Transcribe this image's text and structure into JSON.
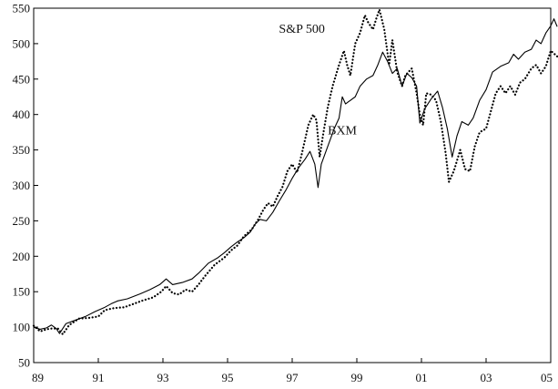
{
  "chart_data": {
    "type": "line",
    "title": "",
    "xlabel": "",
    "ylabel": "",
    "xlim": [
      1989,
      2005
    ],
    "ylim": [
      50,
      550
    ],
    "grid": false,
    "legend": "none",
    "x_ticks": [
      {
        "value": 1989,
        "label": "89"
      },
      {
        "value": 1991,
        "label": "91"
      },
      {
        "value": 1993,
        "label": "93"
      },
      {
        "value": 1995,
        "label": "95"
      },
      {
        "value": 1997,
        "label": "97"
      },
      {
        "value": 1999,
        "label": "99"
      },
      {
        "value": 2001,
        "label": "01"
      },
      {
        "value": 2003,
        "label": "03"
      },
      {
        "value": 2005,
        "label": "05"
      }
    ],
    "y_ticks": [
      50,
      100,
      150,
      200,
      250,
      300,
      350,
      400,
      450,
      500,
      550
    ],
    "series": [
      {
        "name": "BXM",
        "style": "solid",
        "color": "#000000",
        "label_at": {
          "x": 1998.55,
          "y": 372
        },
        "points": [
          [
            1989.0,
            100
          ],
          [
            1989.2,
            97
          ],
          [
            1989.4,
            99
          ],
          [
            1989.55,
            103
          ],
          [
            1989.7,
            98
          ],
          [
            1989.8,
            91
          ],
          [
            1990.0,
            105
          ],
          [
            1990.3,
            110
          ],
          [
            1990.6,
            115
          ],
          [
            1990.9,
            122
          ],
          [
            1991.2,
            128
          ],
          [
            1991.4,
            133
          ],
          [
            1991.6,
            137
          ],
          [
            1991.9,
            140
          ],
          [
            1992.3,
            147
          ],
          [
            1992.6,
            153
          ],
          [
            1992.9,
            160
          ],
          [
            1993.1,
            168
          ],
          [
            1993.3,
            160
          ],
          [
            1993.6,
            163
          ],
          [
            1993.9,
            168
          ],
          [
            1994.1,
            176
          ],
          [
            1994.4,
            190
          ],
          [
            1994.7,
            198
          ],
          [
            1994.9,
            205
          ],
          [
            1995.1,
            213
          ],
          [
            1995.3,
            220
          ],
          [
            1995.5,
            226
          ],
          [
            1995.7,
            234
          ],
          [
            1995.85,
            245
          ],
          [
            1996.0,
            252
          ],
          [
            1996.2,
            250
          ],
          [
            1996.4,
            262
          ],
          [
            1996.6,
            278
          ],
          [
            1996.8,
            293
          ],
          [
            1997.0,
            310
          ],
          [
            1997.2,
            325
          ],
          [
            1997.4,
            337
          ],
          [
            1997.55,
            348
          ],
          [
            1997.7,
            330
          ],
          [
            1997.8,
            297
          ],
          [
            1997.9,
            330
          ],
          [
            1998.1,
            355
          ],
          [
            1998.3,
            380
          ],
          [
            1998.45,
            395
          ],
          [
            1998.55,
            425
          ],
          [
            1998.65,
            415
          ],
          [
            1998.8,
            420
          ],
          [
            1998.95,
            425
          ],
          [
            1999.1,
            440
          ],
          [
            1999.3,
            450
          ],
          [
            1999.5,
            455
          ],
          [
            1999.65,
            470
          ],
          [
            1999.8,
            488
          ],
          [
            1999.95,
            475
          ],
          [
            2000.1,
            458
          ],
          [
            2000.25,
            465
          ],
          [
            2000.4,
            440
          ],
          [
            2000.55,
            458
          ],
          [
            2000.7,
            452
          ],
          [
            2000.85,
            440
          ],
          [
            2000.95,
            388
          ],
          [
            2001.1,
            408
          ],
          [
            2001.3,
            422
          ],
          [
            2001.5,
            433
          ],
          [
            2001.65,
            410
          ],
          [
            2001.8,
            380
          ],
          [
            2001.95,
            340
          ],
          [
            2002.1,
            370
          ],
          [
            2002.25,
            390
          ],
          [
            2002.45,
            385
          ],
          [
            2002.6,
            395
          ],
          [
            2002.8,
            420
          ],
          [
            2003.0,
            435
          ],
          [
            2003.2,
            460
          ],
          [
            2003.45,
            468
          ],
          [
            2003.7,
            473
          ],
          [
            2003.85,
            485
          ],
          [
            2004.0,
            478
          ],
          [
            2004.2,
            488
          ],
          [
            2004.4,
            492
          ],
          [
            2004.55,
            505
          ],
          [
            2004.7,
            500
          ],
          [
            2004.85,
            515
          ],
          [
            2005.0,
            525
          ],
          [
            2005.1,
            535
          ],
          [
            2005.2,
            524
          ]
        ]
      },
      {
        "name": "S&P 500",
        "style": "dotted",
        "color": "#000000",
        "label_at": {
          "x": 1997.3,
          "y": 515
        },
        "points": [
          [
            1989.0,
            102
          ],
          [
            1989.2,
            94
          ],
          [
            1989.4,
            97
          ],
          [
            1989.55,
            98
          ],
          [
            1989.75,
            98
          ],
          [
            1989.9,
            90
          ],
          [
            1990.1,
            103
          ],
          [
            1990.4,
            112
          ],
          [
            1990.7,
            113
          ],
          [
            1991.0,
            115
          ],
          [
            1991.2,
            124
          ],
          [
            1991.5,
            127
          ],
          [
            1991.8,
            128
          ],
          [
            1992.1,
            133
          ],
          [
            1992.4,
            138
          ],
          [
            1992.7,
            142
          ],
          [
            1992.95,
            150
          ],
          [
            1993.1,
            158
          ],
          [
            1993.3,
            148
          ],
          [
            1993.5,
            146
          ],
          [
            1993.7,
            153
          ],
          [
            1993.9,
            150
          ],
          [
            1994.1,
            160
          ],
          [
            1994.3,
            172
          ],
          [
            1994.6,
            188
          ],
          [
            1994.9,
            198
          ],
          [
            1995.1,
            208
          ],
          [
            1995.3,
            215
          ],
          [
            1995.5,
            228
          ],
          [
            1995.75,
            238
          ],
          [
            1995.95,
            252
          ],
          [
            1996.1,
            265
          ],
          [
            1996.25,
            275
          ],
          [
            1996.4,
            270
          ],
          [
            1996.55,
            285
          ],
          [
            1996.7,
            298
          ],
          [
            1996.85,
            320
          ],
          [
            1997.0,
            330
          ],
          [
            1997.15,
            318
          ],
          [
            1997.3,
            345
          ],
          [
            1997.5,
            385
          ],
          [
            1997.65,
            400
          ],
          [
            1997.75,
            392
          ],
          [
            1997.85,
            340
          ],
          [
            1997.95,
            370
          ],
          [
            1998.1,
            410
          ],
          [
            1998.25,
            440
          ],
          [
            1998.45,
            470
          ],
          [
            1998.6,
            490
          ],
          [
            1998.7,
            470
          ],
          [
            1998.8,
            455
          ],
          [
            1998.95,
            500
          ],
          [
            1999.1,
            515
          ],
          [
            1999.25,
            540
          ],
          [
            1999.35,
            530
          ],
          [
            1999.5,
            520
          ],
          [
            1999.6,
            535
          ],
          [
            1999.7,
            548
          ],
          [
            1999.85,
            520
          ],
          [
            2000.0,
            470
          ],
          [
            2000.1,
            505
          ],
          [
            2000.25,
            460
          ],
          [
            2000.4,
            440
          ],
          [
            2000.5,
            455
          ],
          [
            2000.7,
            465
          ],
          [
            2000.85,
            430
          ],
          [
            2000.95,
            400
          ],
          [
            2001.05,
            385
          ],
          [
            2001.15,
            430
          ],
          [
            2001.3,
            428
          ],
          [
            2001.45,
            420
          ],
          [
            2001.6,
            390
          ],
          [
            2001.75,
            345
          ],
          [
            2001.85,
            305
          ],
          [
            2002.0,
            320
          ],
          [
            2002.2,
            350
          ],
          [
            2002.35,
            323
          ],
          [
            2002.5,
            320
          ],
          [
            2002.65,
            355
          ],
          [
            2002.8,
            375
          ],
          [
            2003.0,
            380
          ],
          [
            2003.15,
            405
          ],
          [
            2003.3,
            430
          ],
          [
            2003.45,
            440
          ],
          [
            2003.6,
            430
          ],
          [
            2003.75,
            440
          ],
          [
            2003.9,
            428
          ],
          [
            2004.05,
            445
          ],
          [
            2004.2,
            450
          ],
          [
            2004.4,
            465
          ],
          [
            2004.55,
            470
          ],
          [
            2004.7,
            458
          ],
          [
            2004.85,
            468
          ],
          [
            2005.0,
            490
          ],
          [
            2005.2,
            482
          ]
        ]
      }
    ]
  }
}
